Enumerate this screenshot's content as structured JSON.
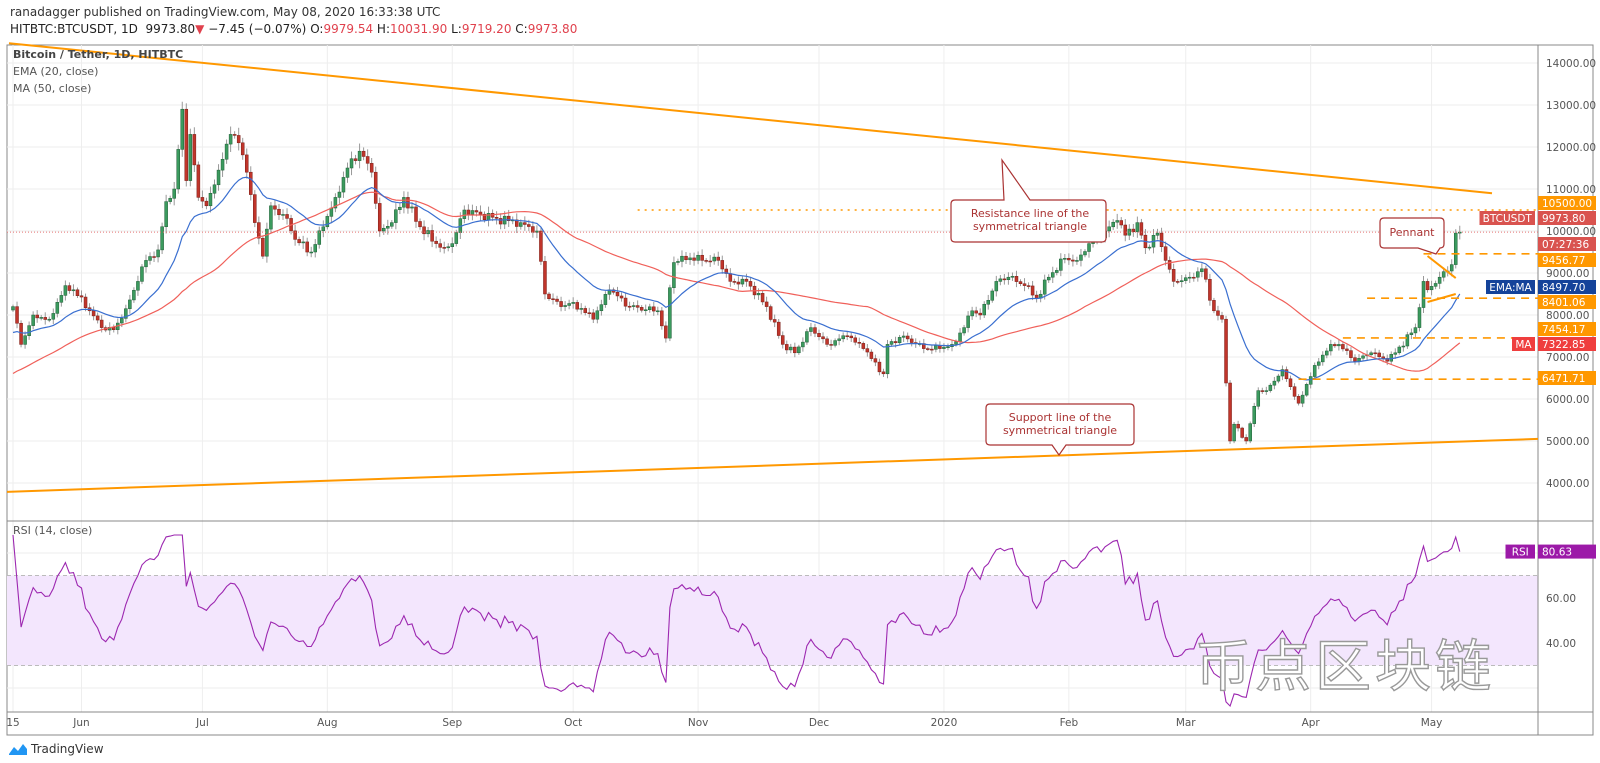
{
  "header": {
    "published": "ranadagger published on TradingView.com, May 08, 2020 16:33:38 UTC",
    "symbol": "HITBTC:BTCUSDT, 1D",
    "last": "9973.80",
    "change": "−7.45 (−0.07%)",
    "o_label": "O:",
    "o": "9979.54",
    "h_label": "H:",
    "h": "10031.90",
    "l_label": "L:",
    "l": "9719.20",
    "c_label": "C:",
    "c": "9973.80",
    "direction_icon": "triangle-down-icon"
  },
  "legend": {
    "title": "Bitcoin / Tether, 1D, HITBTC",
    "ema": "EMA (20, close)",
    "ma": "MA (50, close)",
    "rsi": "RSI (14, close)"
  },
  "annotations": {
    "resistance_callout": [
      "Resistance line of the",
      "symmetrical triangle"
    ],
    "support_callout": [
      "Support line of the",
      "symmetrical triangle"
    ],
    "pennant_callout": "Pennant"
  },
  "badges": {
    "btc_label": "BTCUSDT",
    "btc_value": "9973.80",
    "countdown": "07:27:36",
    "level_10500": "10500.00",
    "level_9456": "9456.77",
    "ema_ma_label": "EMA:MA",
    "ema_value": "8497.70",
    "level_8401": "8401.06",
    "level_7454": "7454.17",
    "ma_label": "MA",
    "ma_value": "7322.85",
    "level_6471": "6471.71",
    "rsi_label": "RSI",
    "rsi_value": "80.63"
  },
  "watermark": "币点区块链",
  "footer": {
    "brand": "TradingView",
    "logo_icon": "tradingview-logo-icon"
  },
  "colors": {
    "up": "#3b9a5e",
    "down": "#c0352b",
    "ema": "#3a6fd0",
    "ma": "#f0605a",
    "trendline": "#ff9800",
    "rsi": "#9c27b0",
    "rsi_band": "#f3e6fd",
    "badge_price": "#d9534f",
    "badge_level": "#ff9800",
    "badge_ema": "#15439a",
    "badge_ma": "#ef3e3e",
    "badge_rsi": "#9c1aa8"
  },
  "chart_data": {
    "type": "candlestick",
    "title": "Bitcoin / Tether, 1D, HITBTC",
    "price_axis": {
      "ylim": [
        3600,
        14600
      ],
      "ticks": [
        "14000.00",
        "13000.00",
        "12000.00",
        "11000.00",
        "10000.00",
        "9000.00",
        "8000.00",
        "7000.00",
        "6000.00",
        "5000.00",
        "4000.00"
      ]
    },
    "rsi_axis": {
      "ylim": [
        10,
        90
      ],
      "ticks": [
        "60.00",
        "40.00"
      ],
      "overbought": 70,
      "oversold": 30
    },
    "time_axis": [
      {
        "label": "15",
        "date": "2019-05-15"
      },
      {
        "label": "Jun",
        "date": "2019-06-01"
      },
      {
        "label": "Jul",
        "date": "2019-07-01"
      },
      {
        "label": "Aug",
        "date": "2019-08-01"
      },
      {
        "label": "Sep",
        "date": "2019-09-01"
      },
      {
        "label": "Oct",
        "date": "2019-10-01"
      },
      {
        "label": "Nov",
        "date": "2019-11-01"
      },
      {
        "label": "Dec",
        "date": "2019-12-01"
      },
      {
        "label": "2020",
        "date": "2020-01-01"
      },
      {
        "label": "Feb",
        "date": "2020-02-01"
      },
      {
        "label": "Mar",
        "date": "2020-03-01"
      },
      {
        "label": "Apr",
        "date": "2020-04-01"
      },
      {
        "label": "May",
        "date": "2020-05-01"
      }
    ],
    "grid": true,
    "close_keypoints": [
      [
        "2019-05-15",
        8200
      ],
      [
        "2019-05-17",
        7300
      ],
      [
        "2019-05-20",
        8000
      ],
      [
        "2019-05-24",
        7900
      ],
      [
        "2019-05-28",
        8700
      ],
      [
        "2019-05-30",
        8600
      ],
      [
        "2019-06-03",
        8100
      ],
      [
        "2019-06-06",
        7700
      ],
      [
        "2019-06-09",
        7650
      ],
      [
        "2019-06-12",
        8150
      ],
      [
        "2019-06-15",
        8800
      ],
      [
        "2019-06-17",
        9300
      ],
      [
        "2019-06-20",
        9550
      ],
      [
        "2019-06-22",
        10700
      ],
      [
        "2019-06-24",
        11000
      ],
      [
        "2019-06-26",
        12900
      ],
      [
        "2019-06-27",
        11200
      ],
      [
        "2019-06-28",
        12300
      ],
      [
        "2019-06-30",
        10800
      ],
      [
        "2019-07-02",
        10600
      ],
      [
        "2019-07-04",
        11100
      ],
      [
        "2019-07-08",
        12300
      ],
      [
        "2019-07-10",
        12100
      ],
      [
        "2019-07-12",
        11400
      ],
      [
        "2019-07-14",
        10200
      ],
      [
        "2019-07-16",
        9400
      ],
      [
        "2019-07-18",
        10600
      ],
      [
        "2019-07-22",
        10300
      ],
      [
        "2019-07-24",
        9800
      ],
      [
        "2019-07-28",
        9500
      ],
      [
        "2019-07-31",
        10100
      ],
      [
        "2019-08-03",
        10800
      ],
      [
        "2019-08-06",
        11500
      ],
      [
        "2019-08-09",
        11900
      ],
      [
        "2019-08-12",
        11400
      ],
      [
        "2019-08-14",
        10000
      ],
      [
        "2019-08-17",
        10200
      ],
      [
        "2019-08-20",
        10800
      ],
      [
        "2019-08-24",
        10100
      ],
      [
        "2019-08-28",
        9700
      ],
      [
        "2019-08-30",
        9600
      ],
      [
        "2019-09-01",
        9700
      ],
      [
        "2019-09-04",
        10500
      ],
      [
        "2019-09-08",
        10400
      ],
      [
        "2019-09-12",
        10300
      ],
      [
        "2019-09-18",
        10200
      ],
      [
        "2019-09-22",
        10000
      ],
      [
        "2019-09-24",
        8500
      ],
      [
        "2019-09-28",
        8200
      ],
      [
        "2019-10-01",
        8300
      ],
      [
        "2019-10-06",
        7900
      ],
      [
        "2019-10-10",
        8600
      ],
      [
        "2019-10-15",
        8200
      ],
      [
        "2019-10-22",
        8100
      ],
      [
        "2019-10-24",
        7450
      ],
      [
        "2019-10-25",
        8650
      ],
      [
        "2019-10-26",
        9250
      ],
      [
        "2019-10-28",
        9400
      ],
      [
        "2019-11-02",
        9300
      ],
      [
        "2019-11-06",
        9300
      ],
      [
        "2019-11-09",
        8800
      ],
      [
        "2019-11-13",
        8800
      ],
      [
        "2019-11-18",
        8200
      ],
      [
        "2019-11-22",
        7300
      ],
      [
        "2019-11-25",
        7100
      ],
      [
        "2019-11-29",
        7700
      ],
      [
        "2019-12-03",
        7300
      ],
      [
        "2019-12-08",
        7500
      ],
      [
        "2019-12-12",
        7200
      ],
      [
        "2019-12-17",
        6600
      ],
      [
        "2019-12-18",
        7300
      ],
      [
        "2019-12-22",
        7500
      ],
      [
        "2019-12-27",
        7200
      ],
      [
        "2019-12-31",
        7200
      ],
      [
        "2020-01-03",
        7300
      ],
      [
        "2020-01-06",
        7700
      ],
      [
        "2020-01-08",
        8100
      ],
      [
        "2020-01-10",
        8000
      ],
      [
        "2020-01-14",
        8800
      ],
      [
        "2020-01-17",
        8900
      ],
      [
        "2020-01-21",
        8700
      ],
      [
        "2020-01-24",
        8400
      ],
      [
        "2020-01-27",
        8900
      ],
      [
        "2020-01-31",
        9350
      ],
      [
        "2020-02-03",
        9300
      ],
      [
        "2020-02-06",
        9700
      ],
      [
        "2020-02-10",
        10000
      ],
      [
        "2020-02-13",
        10250
      ],
      [
        "2020-02-15",
        9900
      ],
      [
        "2020-02-18",
        10200
      ],
      [
        "2020-02-20",
        9600
      ],
      [
        "2020-02-23",
        9950
      ],
      [
        "2020-02-25",
        9300
      ],
      [
        "2020-02-27",
        8800
      ],
      [
        "2020-03-02",
        8900
      ],
      [
        "2020-03-05",
        9100
      ],
      [
        "2020-03-08",
        8100
      ],
      [
        "2020-03-10",
        7900
      ],
      [
        "2020-03-12",
        5000
      ],
      [
        "2020-03-13",
        5400
      ],
      [
        "2020-03-16",
        5000
      ],
      [
        "2020-03-19",
        6200
      ],
      [
        "2020-03-21",
        6200
      ],
      [
        "2020-03-25",
        6700
      ],
      [
        "2020-03-29",
        5900
      ],
      [
        "2020-04-02",
        6800
      ],
      [
        "2020-04-06",
        7300
      ],
      [
        "2020-04-08",
        7300
      ],
      [
        "2020-04-12",
        6900
      ],
      [
        "2020-04-16",
        7100
      ],
      [
        "2020-04-20",
        6900
      ],
      [
        "2020-04-22",
        7100
      ],
      [
        "2020-04-27",
        7700
      ],
      [
        "2020-04-29",
        8800
      ],
      [
        "2020-04-30",
        8600
      ],
      [
        "2020-05-03",
        8900
      ],
      [
        "2020-05-06",
        9200
      ],
      [
        "2020-05-07",
        9950
      ],
      [
        "2020-05-08",
        9973.8
      ]
    ],
    "last_close": 9973.8,
    "ema20_last": 8497.7,
    "ma50_last": 7322.85,
    "rsi_last": 80.63,
    "drawings": {
      "resistance_line": {
        "from": [
          "2019-05-14",
          14470
        ],
        "to": [
          "2020-05-16",
          10900
        ]
      },
      "support_line": {
        "from": [
          "2019-05-14",
          3790
        ],
        "to": [
          "2020-05-35",
          5050
        ]
      },
      "dotted_level": {
        "price": 10500,
        "from": "2019-10-17"
      },
      "dashed_levels": [
        {
          "price": 9456.77,
          "from": "2020-04-29"
        },
        {
          "price": 8401.06,
          "from": "2020-04-15"
        },
        {
          "price": 7454.17,
          "from": "2020-04-09"
        },
        {
          "price": 6471.71,
          "from": "2020-03-29"
        }
      ],
      "pennant": {
        "upper": [
          [
            "2020-04-30",
            9405
          ],
          [
            "2020-05-07",
            8880
          ]
        ],
        "lower": [
          [
            "2020-04-30",
            8310
          ],
          [
            "2020-05-07",
            8500
          ]
        ]
      }
    }
  }
}
